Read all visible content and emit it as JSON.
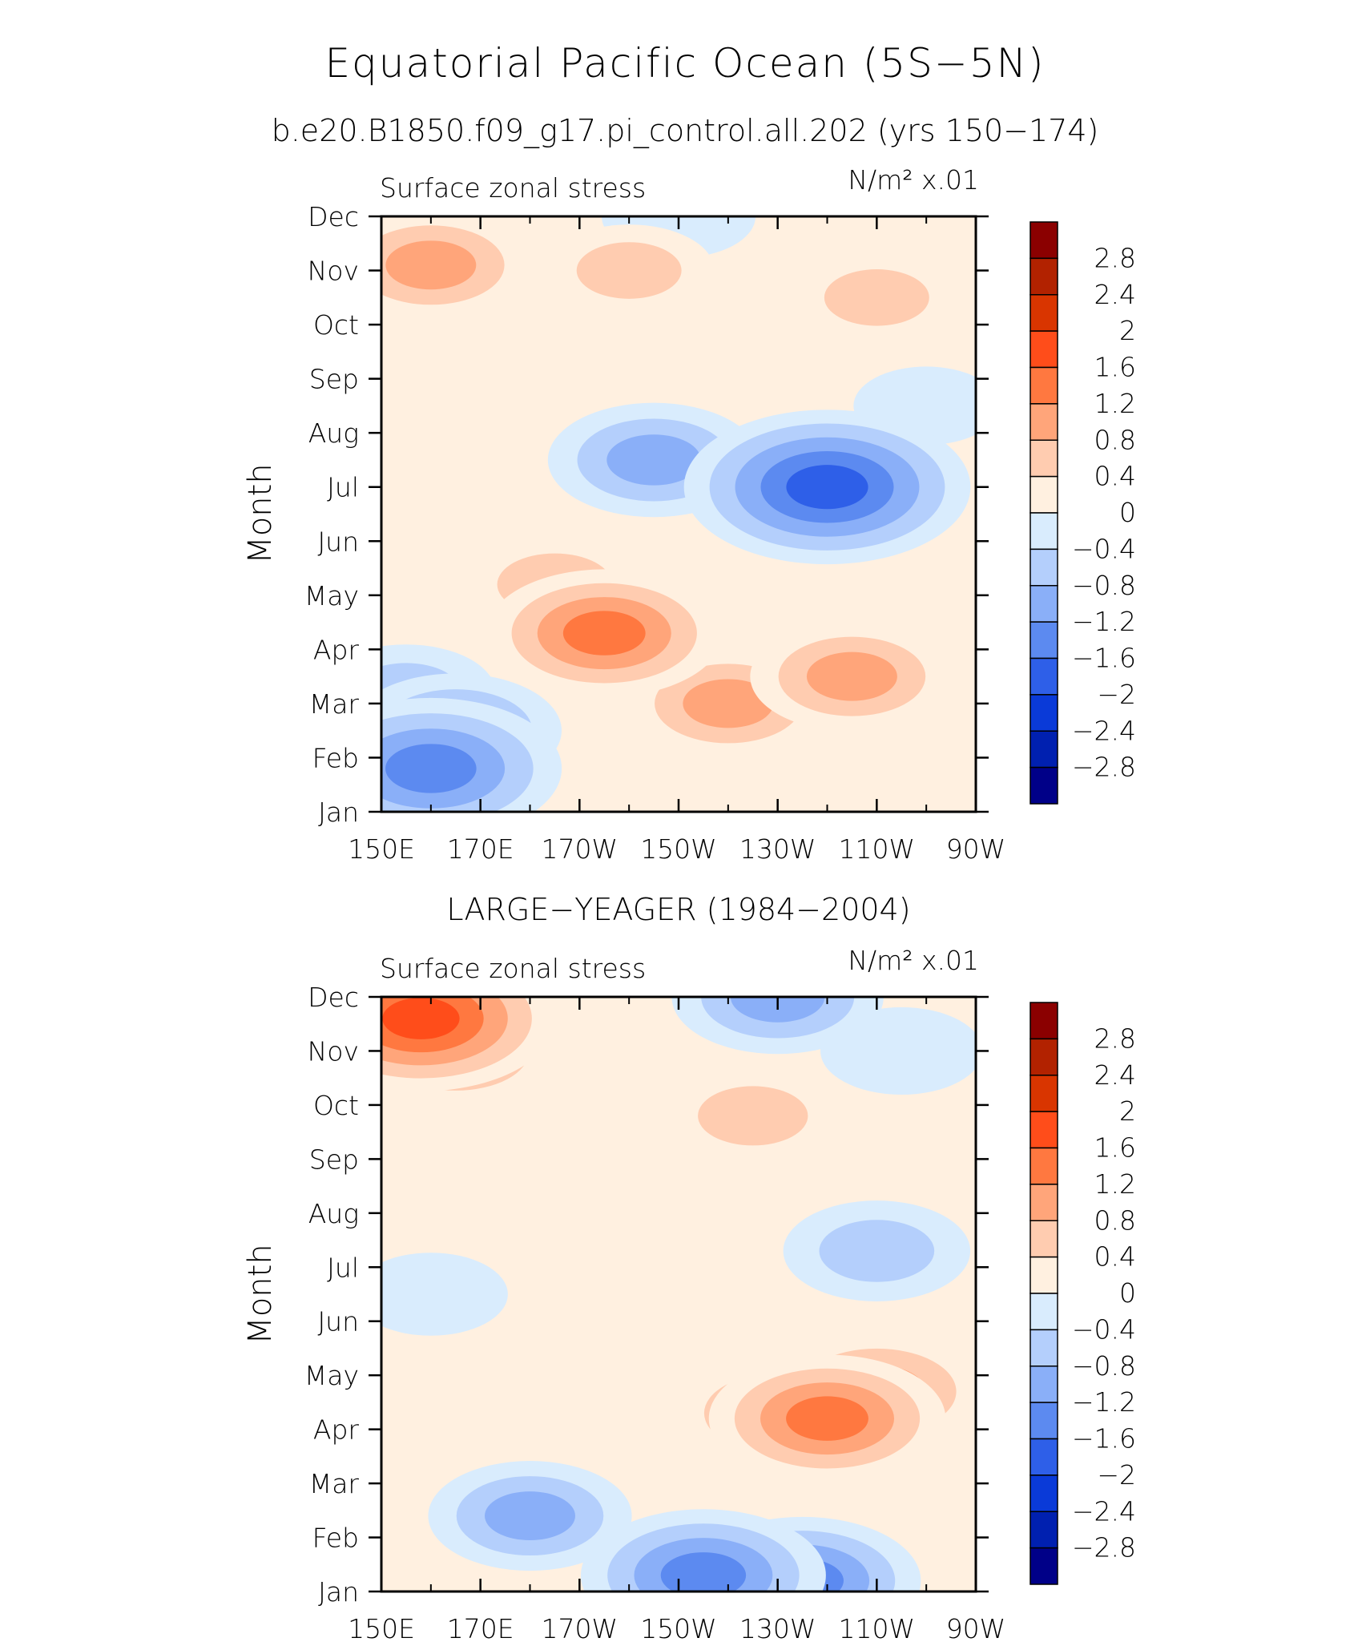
{
  "page": {
    "title": "Equatorial Pacific Ocean (5S−5N)",
    "subtitle": "b.e20.B1850.f09_g17.pi_control.all.202 (yrs 150−174)"
  },
  "colorbar": {
    "levels": [
      "2.8",
      "2.4",
      "2",
      "1.6",
      "1.2",
      "0.8",
      "0.4",
      "0",
      "−0.4",
      "−0.8",
      "−1.2",
      "−1.6",
      "−2",
      "−2.4",
      "−2.8"
    ],
    "colors": [
      "#8b0000",
      "#b22200",
      "#d93500",
      "#ff4d1a",
      "#ff7840",
      "#ffa57a",
      "#ffccb0",
      "#fff0e0",
      "#d9ecfd",
      "#b4cffc",
      "#8aaff8",
      "#5c8af0",
      "#2e5fe8",
      "#0a3ad8",
      "#0020b0",
      "#000088"
    ]
  },
  "chart_data": [
    {
      "type": "heatmap",
      "panel_title": "",
      "left_label": "Surface zonal stress",
      "right_label": "N/m² x.01",
      "xlabel": "",
      "ylabel": "Month",
      "x_ticks": [
        "150E",
        "170E",
        "170W",
        "150W",
        "130W",
        "110W",
        "90W"
      ],
      "y_ticks": [
        "Jan",
        "Feb",
        "Mar",
        "Apr",
        "May",
        "Jun",
        "Jul",
        "Aug",
        "Sep",
        "Oct",
        "Nov",
        "Dec"
      ],
      "xlim": [
        150,
        270
      ],
      "ylim": [
        1,
        12
      ],
      "features": [
        {
          "lon": 160,
          "month": 1.8,
          "value": -1.6
        },
        {
          "lon": 165,
          "month": 2.5,
          "value": -1.0
        },
        {
          "lon": 155,
          "month": 3.2,
          "value": -0.6
        },
        {
          "lon": 195,
          "month": 4.3,
          "value": 1.3
        },
        {
          "lon": 220,
          "month": 3.0,
          "value": 0.9
        },
        {
          "lon": 245,
          "month": 3.5,
          "value": 0.9
        },
        {
          "lon": 185,
          "month": 5.2,
          "value": 0.7
        },
        {
          "lon": 240,
          "month": 7.0,
          "value": -1.9
        },
        {
          "lon": 205,
          "month": 7.5,
          "value": -1.0
        },
        {
          "lon": 260,
          "month": 8.5,
          "value": -0.2
        },
        {
          "lon": 160,
          "month": 11.1,
          "value": 0.9
        },
        {
          "lon": 200,
          "month": 11.0,
          "value": 0.5
        },
        {
          "lon": 250,
          "month": 10.5,
          "value": 0.5
        },
        {
          "lon": 210,
          "month": 12.0,
          "value": -0.3
        }
      ]
    },
    {
      "type": "heatmap",
      "panel_title": "LARGE−YEAGER (1984−2004)",
      "left_label": "Surface zonal stress",
      "right_label": "N/m² x.01",
      "xlabel": "",
      "ylabel": "Month",
      "x_ticks": [
        "150E",
        "170E",
        "170W",
        "150W",
        "130W",
        "110W",
        "90W"
      ],
      "y_ticks": [
        "Jan",
        "Feb",
        "Mar",
        "Apr",
        "May",
        "Jun",
        "Jul",
        "Aug",
        "Sep",
        "Oct",
        "Nov",
        "Dec"
      ],
      "xlim": [
        150,
        270
      ],
      "ylim": [
        1,
        12
      ],
      "features": [
        {
          "lon": 158,
          "month": 11.6,
          "value": 1.7
        },
        {
          "lon": 165,
          "month": 11.0,
          "value": 0.9
        },
        {
          "lon": 225,
          "month": 9.8,
          "value": 0.6
        },
        {
          "lon": 230,
          "month": 4.3,
          "value": 0.9
        },
        {
          "lon": 240,
          "month": 4.2,
          "value": 1.3
        },
        {
          "lon": 250,
          "month": 4.7,
          "value": 1.1
        },
        {
          "lon": 215,
          "month": 1.3,
          "value": -1.4
        },
        {
          "lon": 235,
          "month": 1.2,
          "value": -1.3
        },
        {
          "lon": 180,
          "month": 2.4,
          "value": -0.9
        },
        {
          "lon": 160,
          "month": 6.5,
          "value": -0.3
        },
        {
          "lon": 250,
          "month": 7.3,
          "value": -0.7
        },
        {
          "lon": 230,
          "month": 12.0,
          "value": -1.0
        },
        {
          "lon": 255,
          "month": 11.0,
          "value": -0.4
        },
        {
          "lon": 200,
          "month": 8.2,
          "value": 0.3
        }
      ]
    }
  ]
}
